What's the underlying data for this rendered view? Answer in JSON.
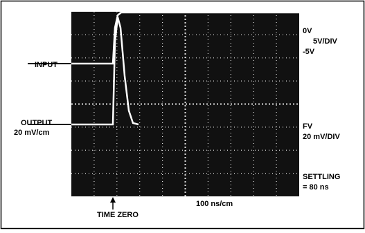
{
  "labels": {
    "zero_volts": "0V",
    "input_scale": "5V/DIV",
    "minus_five": "-5V",
    "input": "INPUT",
    "output": "OUTPUT",
    "output_scale_left": "20 mV/cm",
    "final_value": "FV",
    "output_scale_right": "20 mV/DIV",
    "settling": "SETTLING",
    "settling_time": "= 80 ns",
    "time_zero": "TIME ZERO",
    "time_scale": "100 ns/cm"
  }
}
